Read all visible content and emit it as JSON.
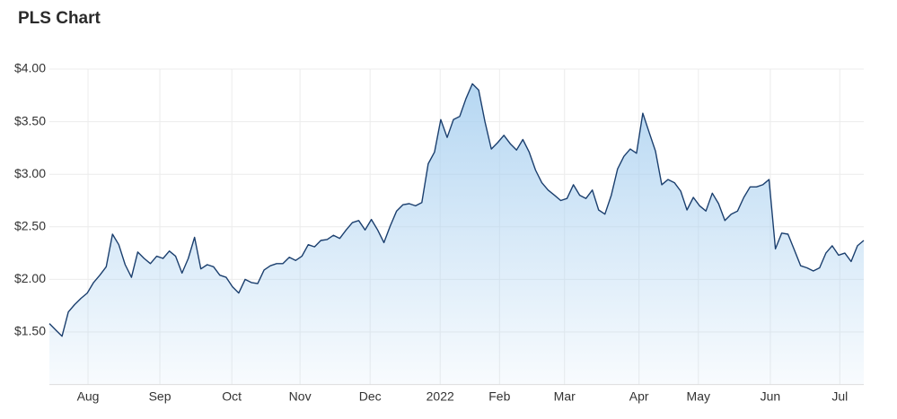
{
  "chart_data": {
    "type": "area",
    "title": "PLS Chart",
    "color": "#1b3f6e",
    "fill": "#a9d0f0",
    "grid": true,
    "values": [
      1.58,
      1.52,
      1.46,
      1.69,
      1.76,
      1.82,
      1.87,
      1.97,
      2.04,
      2.12,
      2.43,
      2.33,
      2.14,
      2.02,
      2.26,
      2.2,
      2.15,
      2.22,
      2.2,
      2.27,
      2.22,
      2.06,
      2.2,
      2.4,
      2.1,
      2.14,
      2.12,
      2.04,
      2.02,
      1.93,
      1.87,
      2.0,
      1.97,
      1.96,
      2.09,
      2.13,
      2.15,
      2.15,
      2.21,
      2.18,
      2.22,
      2.33,
      2.31,
      2.37,
      2.38,
      2.42,
      2.39,
      2.47,
      2.54,
      2.56,
      2.47,
      2.57,
      2.47,
      2.35,
      2.51,
      2.65,
      2.71,
      2.72,
      2.7,
      2.73,
      3.1,
      3.21,
      3.52,
      3.35,
      3.52,
      3.55,
      3.72,
      3.86,
      3.8,
      3.5,
      3.24,
      3.3,
      3.37,
      3.29,
      3.23,
      3.33,
      3.21,
      3.04,
      2.92,
      2.85,
      2.8,
      2.75,
      2.77,
      2.9,
      2.8,
      2.77,
      2.85,
      2.66,
      2.62,
      2.8,
      3.05,
      3.17,
      3.24,
      3.2,
      3.58,
      3.4,
      3.22,
      2.9,
      2.95,
      2.92,
      2.84,
      2.66,
      2.78,
      2.7,
      2.65,
      2.82,
      2.72,
      2.56,
      2.62,
      2.65,
      2.78,
      2.88,
      2.88,
      2.9,
      2.95,
      2.29,
      2.44,
      2.43,
      2.28,
      2.13,
      2.11,
      2.08,
      2.11,
      2.25,
      2.32,
      2.23,
      2.25,
      2.17,
      2.32,
      2.37
    ],
    "xlim": [
      0,
      129
    ],
    "xticks": [
      {
        "value": 6.12,
        "label": "Aug"
      },
      {
        "value": 17.5,
        "label": "Sep"
      },
      {
        "value": 28.9,
        "label": "Oct"
      },
      {
        "value": 39.7,
        "label": "Nov"
      },
      {
        "value": 50.8,
        "label": "Dec"
      },
      {
        "value": 61.9,
        "label": "2022"
      },
      {
        "value": 71.3,
        "label": "Feb"
      },
      {
        "value": 81.6,
        "label": "Mar"
      },
      {
        "value": 93.4,
        "label": "Apr"
      },
      {
        "value": 102.8,
        "label": "May"
      },
      {
        "value": 114.2,
        "label": "Jun"
      },
      {
        "value": 125.2,
        "label": "Jul"
      }
    ],
    "ylim": [
      1.0,
      4.0
    ],
    "yticks": [
      {
        "value": 1.5,
        "label": "$1.50"
      },
      {
        "value": 2,
        "label": "$2.00"
      },
      {
        "value": 2.5,
        "label": "$2.50"
      },
      {
        "value": 3,
        "label": "$3.00"
      },
      {
        "value": 3.5,
        "label": "$3.50"
      },
      {
        "value": 4,
        "label": "$4.00"
      }
    ]
  }
}
